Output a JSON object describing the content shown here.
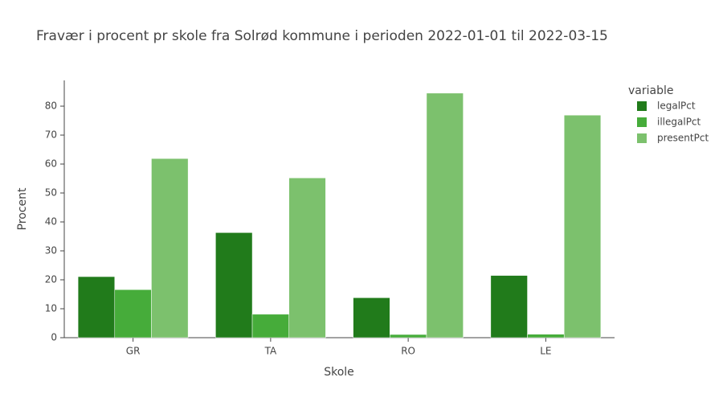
{
  "chart_data": {
    "type": "bar",
    "title": "Fravær i procent pr skole fra Solrød kommune i perioden 2022-01-01 til 2022-03-15",
    "x_label": "Skole",
    "y_label": "Procent",
    "legend_title": "variable",
    "categories": [
      "GR",
      "TA",
      "RO",
      "LE"
    ],
    "series": [
      {
        "name": "legalPct",
        "color": "#217b1b",
        "values": [
          21.1,
          36.3,
          13.8,
          21.5
        ]
      },
      {
        "name": "illegalPct",
        "color": "#46ac3a",
        "values": [
          16.6,
          8.1,
          1.1,
          1.2
        ]
      },
      {
        "name": "presentPct",
        "color": "#7cc16d",
        "values": [
          61.9,
          55.2,
          84.5,
          76.9
        ]
      }
    ],
    "ylim": [
      0,
      88.9
    ],
    "yticks": [
      0,
      10,
      20,
      30,
      40,
      50,
      60,
      70,
      80
    ],
    "legend": "right"
  }
}
